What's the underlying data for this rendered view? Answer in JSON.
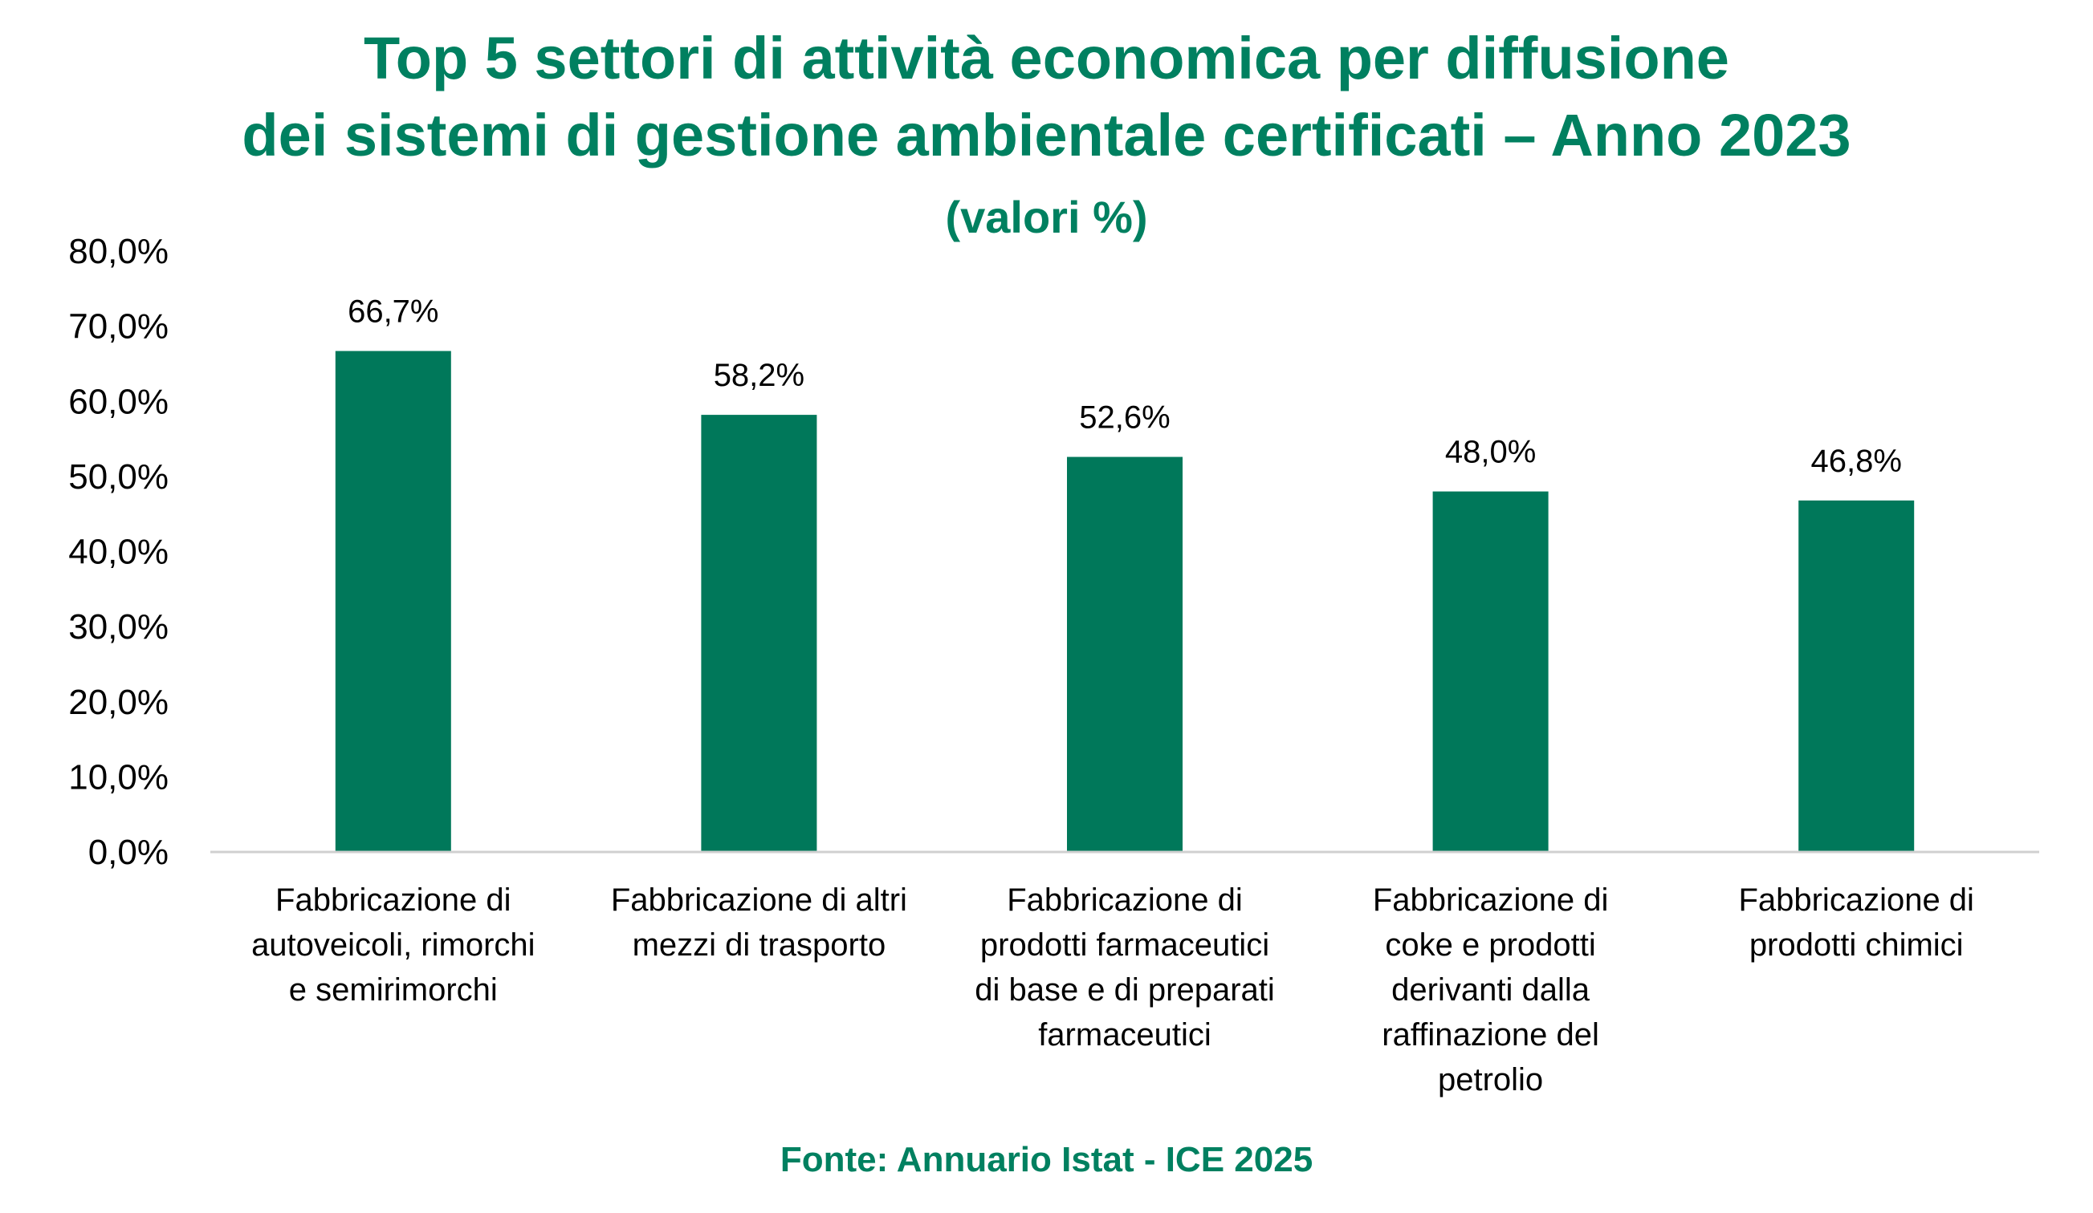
{
  "title_lines": [
    "Top 5 settori di attività economica per diffusione",
    "dei sistemi di gestione ambientale certificati – Anno 2023"
  ],
  "subtitle": "(valori %)",
  "source": "Fonte: Annuario Istat - ICE 2025",
  "colors": {
    "bar": "#00785A",
    "title": "#008060",
    "axis": "#D0D0D0"
  },
  "chart_data": {
    "type": "bar",
    "title": "Top 5 settori di attività economica per diffusione dei sistemi di gestione ambientale certificati – Anno 2023",
    "subtitle": "(valori %)",
    "ylim": [
      0,
      80
    ],
    "yticks": [
      0,
      10,
      20,
      30,
      40,
      50,
      60,
      70,
      80
    ],
    "ytick_labels": [
      "0,0%",
      "10,0%",
      "20,0%",
      "30,0%",
      "40,0%",
      "50,0%",
      "60,0%",
      "70,0%",
      "80,0%"
    ],
    "grid": false,
    "legend": "none",
    "categories": [
      "Fabbricazione di autoveicoli, rimorchi e semirimorchi",
      "Fabbricazione di altri mezzi di trasporto",
      "Fabbricazione di prodotti farmaceutici di base e di preparati farmaceutici",
      "Fabbricazione di coke e prodotti derivanti dalla raffinazione del petrolio",
      "Fabbricazione di prodotti chimici"
    ],
    "category_lines": [
      [
        "Fabbricazione di",
        "autoveicoli, rimorchi",
        "e semirimorchi"
      ],
      [
        "Fabbricazione di altri",
        "mezzi di trasporto"
      ],
      [
        "Fabbricazione di",
        "prodotti farmaceutici",
        "di base e di preparati",
        "farmaceutici"
      ],
      [
        "Fabbricazione di",
        "coke e prodotti",
        "derivanti dalla",
        "raffinazione del",
        "petrolio"
      ],
      [
        "Fabbricazione di",
        "prodotti chimici"
      ]
    ],
    "values": [
      66.7,
      58.2,
      52.6,
      48.0,
      46.8
    ],
    "data_labels": [
      "66,7%",
      "58,2%",
      "52,6%",
      "48,0%",
      "46,8%"
    ]
  }
}
